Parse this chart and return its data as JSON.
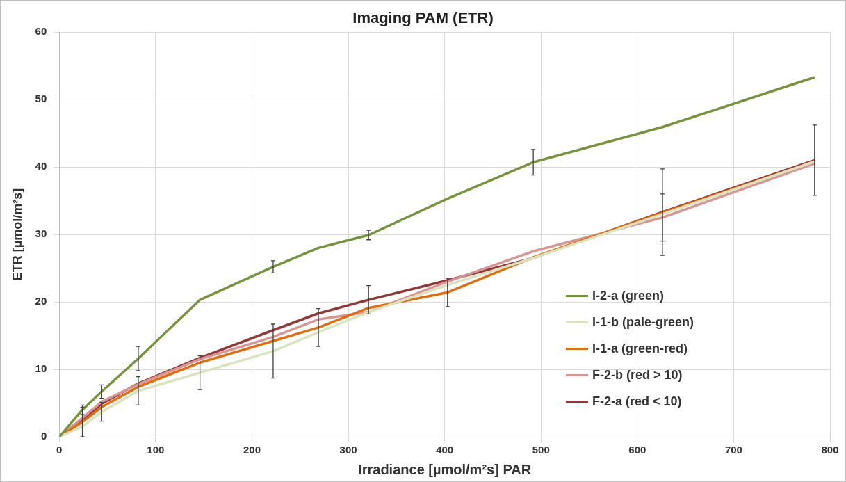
{
  "chart_data": {
    "type": "line",
    "title": "Imaging PAM (ETR)",
    "xlabel": "Irradiance [µmol/m²s] PAR",
    "ylabel": "ETR [µmol/m²s]",
    "x": [
      0,
      24,
      44,
      82,
      146,
      222,
      269,
      321,
      403,
      492,
      626,
      784
    ],
    "xlim": [
      0,
      800
    ],
    "xticks": [
      0,
      100,
      200,
      300,
      400,
      500,
      600,
      700,
      800
    ],
    "ylim": [
      0,
      60
    ],
    "yticks": [
      0,
      10,
      20,
      30,
      40,
      50,
      60
    ],
    "grid": true,
    "legend": "right",
    "marker": "none",
    "line_style": "solid",
    "series": [
      {
        "name": "I-2-a (green)",
        "color": "#77933c",
        "values": [
          0,
          4.0,
          6.7,
          11.6,
          20.3,
          25.2,
          28.0,
          29.9,
          35.3,
          40.7,
          45.9,
          53.3
        ],
        "errors": [
          null,
          0.7,
          1.0,
          1.8,
          null,
          0.9,
          null,
          0.7,
          null,
          1.9,
          null,
          null
        ]
      },
      {
        "name": "I-1-b (pale-green)",
        "color": "#d7e4bd",
        "values": [
          0,
          1.5,
          3.7,
          6.8,
          9.5,
          12.7,
          15.5,
          18.5,
          22.5,
          26.5,
          33.0,
          40.8
        ],
        "errors": [
          null,
          null,
          1.4,
          2.1,
          2.5,
          4.0,
          null,
          null,
          null,
          null,
          null,
          null
        ]
      },
      {
        "name": "I-1-a (green-red)",
        "color": "#e46c0a",
        "values": [
          0,
          2.2,
          4.4,
          7.4,
          11.0,
          14.2,
          16.2,
          19.1,
          21.4,
          26.6,
          33.2,
          40.8
        ],
        "errors": [
          null,
          2.2,
          null,
          null,
          null,
          null,
          2.8,
          null,
          2.1,
          null,
          null,
          null
        ]
      },
      {
        "name": "F-2-b (red > 10)",
        "color": "#d99594",
        "values": [
          0,
          2.8,
          5.2,
          7.8,
          11.5,
          14.8,
          17.4,
          18.5,
          23.0,
          27.5,
          32.5,
          40.5
        ],
        "errors": [
          null,
          null,
          null,
          null,
          null,
          null,
          null,
          null,
          null,
          null,
          3.5,
          null
        ]
      },
      {
        "name": "F-2-a (red < 10)",
        "color": "#953735",
        "values": [
          0,
          2.5,
          4.9,
          7.9,
          11.7,
          15.8,
          18.3,
          20.3,
          23.2,
          26.5,
          33.3,
          41.0
        ],
        "errors": [
          null,
          null,
          null,
          null,
          null,
          null,
          null,
          2.1,
          null,
          null,
          6.4,
          5.2
        ]
      }
    ]
  }
}
